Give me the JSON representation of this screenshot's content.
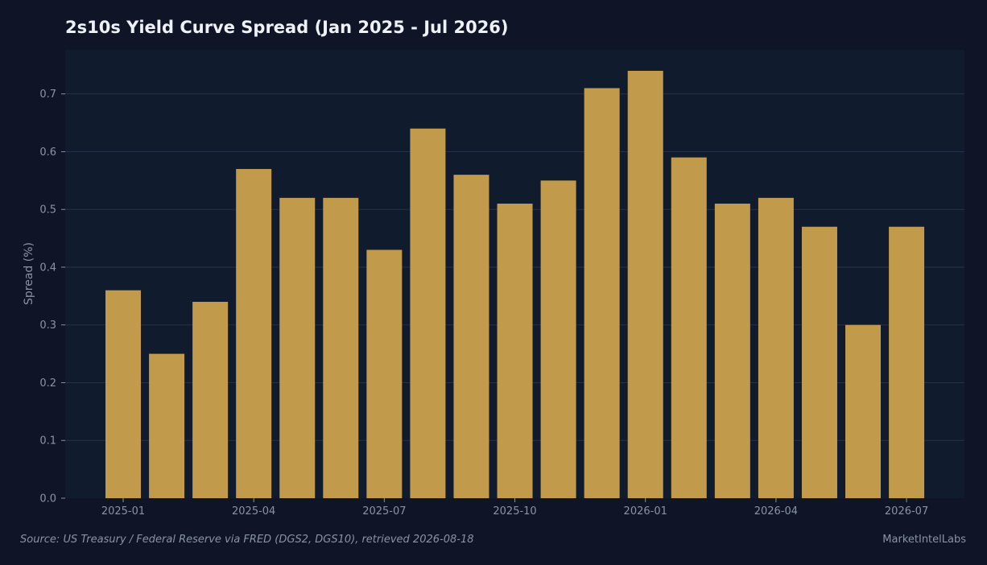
{
  "chart_data": {
    "type": "bar",
    "title": "2s10s Yield Curve Spread (Jan 2025 - Jul 2026)",
    "ylabel": "Spread (%)",
    "xlabel": "",
    "categories": [
      "2025-01",
      "2025-02",
      "2025-03",
      "2025-04",
      "2025-05",
      "2025-06",
      "2025-07",
      "2025-08",
      "2025-09",
      "2025-10",
      "2025-11",
      "2025-12",
      "2026-01",
      "2026-02",
      "2026-03",
      "2026-04",
      "2026-05",
      "2026-06",
      "2026-07"
    ],
    "values": [
      0.36,
      0.25,
      0.34,
      0.57,
      0.52,
      0.52,
      0.43,
      0.64,
      0.56,
      0.51,
      0.55,
      0.71,
      0.74,
      0.59,
      0.51,
      0.52,
      0.47,
      0.3,
      0.47
    ],
    "x_tick_labels": [
      "2025-01",
      "2025-04",
      "2025-07",
      "2025-10",
      "2026-01",
      "2026-04",
      "2026-07"
    ],
    "y_ticks": [
      0.0,
      0.1,
      0.2,
      0.3,
      0.4,
      0.5,
      0.6,
      0.7
    ],
    "ylim": [
      0,
      0.78
    ],
    "grid": true,
    "colors": {
      "bar": "#c19a4b",
      "background": "#0f1526",
      "plot_background": "#111b2e",
      "grid": "#26304a"
    }
  },
  "footer": {
    "source": "Source: US Treasury / Federal Reserve via FRED (DGS2, DGS10), retrieved 2026-08-18",
    "brand": "MarketIntelLabs"
  }
}
